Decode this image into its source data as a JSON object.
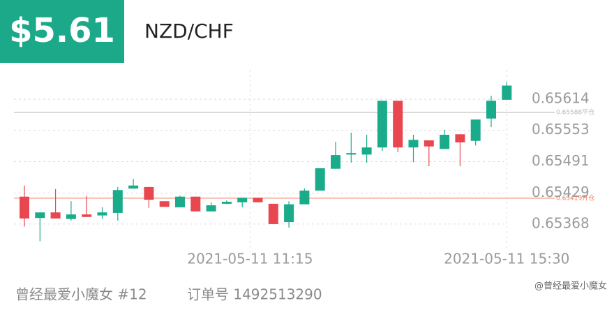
{
  "header": {
    "price": "$5.61",
    "pair": "NZD/CHF"
  },
  "chart_data": {
    "type": "candlestick",
    "categories": [
      null,
      null,
      null,
      null,
      null,
      null,
      null,
      null,
      null,
      null,
      null,
      null,
      null,
      null,
      null,
      null,
      null,
      null,
      null,
      null,
      null,
      null,
      null,
      null,
      null,
      null,
      null,
      null,
      null,
      null,
      null,
      null
    ],
    "open": [
      0.65422,
      0.6538,
      0.65391,
      0.65378,
      0.65387,
      0.65385,
      0.6539,
      0.65438,
      0.65441,
      0.65413,
      0.65401,
      0.65422,
      0.65393,
      0.65408,
      0.65411,
      0.6542,
      0.65408,
      0.65372,
      0.65407,
      0.65434,
      0.65477,
      0.65505,
      0.65505,
      0.65519,
      0.65611,
      0.65519,
      0.65533,
      0.65516,
      0.65545,
      0.65532,
      0.65576,
      0.65613
    ],
    "high": [
      0.65444,
      0.65391,
      0.65437,
      0.65413,
      0.65424,
      0.65401,
      0.65441,
      0.65457,
      0.65441,
      0.65413,
      0.65424,
      0.65422,
      0.65411,
      0.65415,
      0.6542,
      0.6542,
      0.65408,
      0.65413,
      0.65438,
      0.65478,
      0.6553,
      0.65548,
      0.65544,
      0.65611,
      0.65611,
      0.65544,
      0.65533,
      0.65554,
      0.65545,
      0.65574,
      0.65621,
      0.65648
    ],
    "low": [
      0.65363,
      0.65334,
      0.65379,
      0.65375,
      0.65382,
      0.65378,
      0.65375,
      0.65438,
      0.654,
      0.65402,
      0.65401,
      0.65393,
      0.65393,
      0.65407,
      0.65401,
      0.65411,
      0.65368,
      0.65361,
      0.65407,
      0.65434,
      0.65477,
      0.65489,
      0.65489,
      0.65512,
      0.6551,
      0.6549,
      0.65482,
      0.65516,
      0.65482,
      0.65523,
      0.65559,
      0.65613
    ],
    "close": [
      0.65379,
      0.65391,
      0.65379,
      0.65387,
      0.65382,
      0.65391,
      0.65435,
      0.65444,
      0.65416,
      0.65402,
      0.65422,
      0.65393,
      0.65405,
      0.65412,
      0.6542,
      0.65411,
      0.65368,
      0.65407,
      0.65434,
      0.65478,
      0.65504,
      0.65508,
      0.65519,
      0.65611,
      0.65519,
      0.65534,
      0.65521,
      0.65544,
      0.65529,
      0.65574,
      0.65611,
      0.65641
    ],
    "up_color": "#1aab8b",
    "down_color": "#e8474f",
    "ylim": [
      0.65328,
      0.65672
    ],
    "yticks": [
      0.65368,
      0.65429,
      0.65491,
      0.65553,
      0.65614
    ],
    "xticks": [
      {
        "value": 14.5,
        "label": "2021-05-11 11:15"
      },
      {
        "value": 31,
        "label": "2021-05-11 15:30"
      }
    ],
    "grid": true,
    "ref_lines": [
      {
        "value": 0.65588,
        "label": "0.65588平仓",
        "color": "#b5b5b5"
      },
      {
        "value": 0.65419,
        "label": "0.65419开仓",
        "color": "#f0785a"
      }
    ]
  },
  "footer": {
    "user": "曾经最爱小魔女 #12",
    "order": "订单号 1492513290",
    "watermark": "@曾经最爱小魔女"
  }
}
